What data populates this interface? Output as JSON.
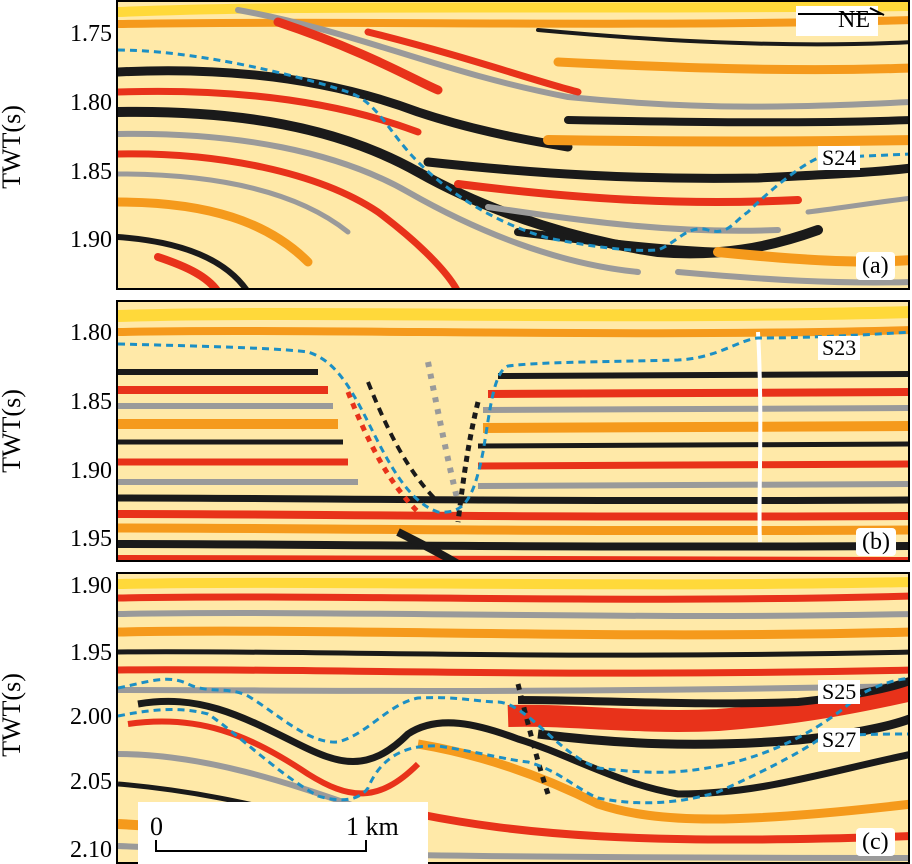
{
  "figure": {
    "y_axis_label": "TWT(s)",
    "direction_label": "NE",
    "scale_bar": {
      "start_label": "0",
      "end_label": "1 km"
    },
    "colors": {
      "horizon_line": "#1c8fc4",
      "seismic_positive_red": "#e8321a",
      "seismic_positive_orange": "#f59a1c",
      "seismic_positive_yellow": "#ffd93a",
      "seismic_negative_black": "#1a1a1a",
      "seismic_negative_grey": "#9a9a9a"
    }
  },
  "panels": [
    {
      "label": "(a)",
      "ticks": [
        "1.75",
        "1.80",
        "1.85",
        "1.90"
      ],
      "horizons": [
        "S24"
      ]
    },
    {
      "label": "(b)",
      "ticks": [
        "1.80",
        "1.85",
        "1.90",
        "1.95"
      ],
      "horizons": [
        "S23"
      ]
    },
    {
      "label": "(c)",
      "ticks": [
        "1.90",
        "1.95",
        "2.00",
        "2.05",
        "2.10"
      ],
      "horizons": [
        "S25",
        "S27"
      ]
    }
  ]
}
